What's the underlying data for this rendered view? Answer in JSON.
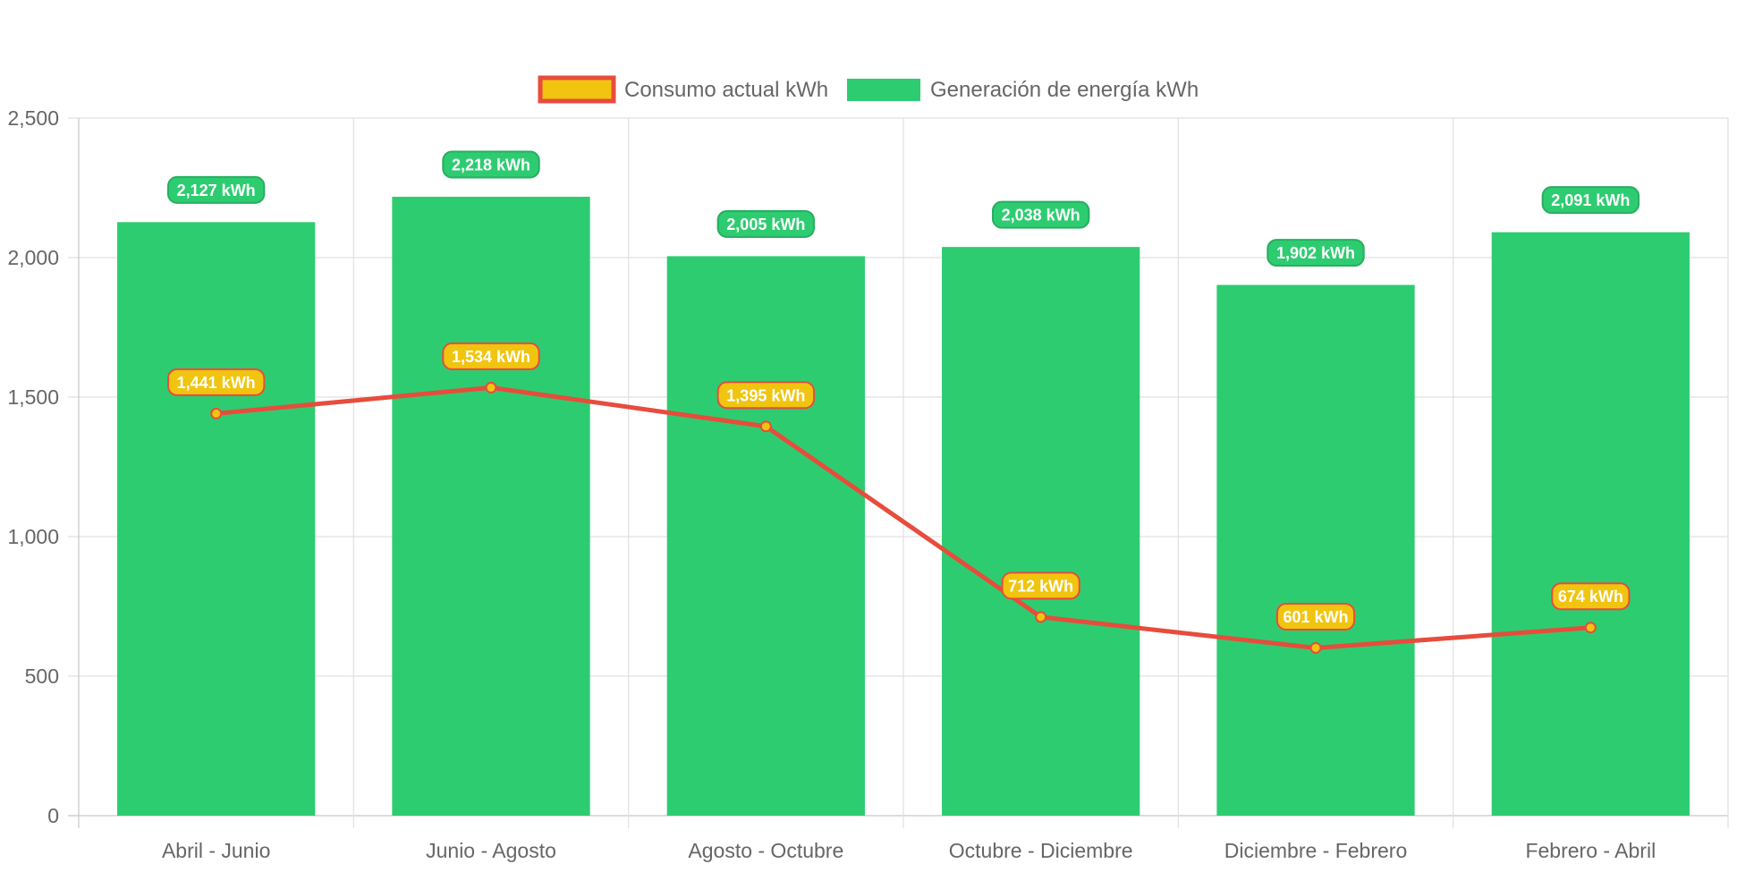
{
  "chart_data": {
    "type": "bar",
    "categories": [
      "Abril - Junio",
      "Junio - Agosto",
      "Agosto - Octubre",
      "Octubre - Diciembre",
      "Diciembre - Febrero",
      "Febrero - Abril"
    ],
    "series": [
      {
        "name": "Consumo actual kWh",
        "type": "line",
        "values": [
          1441,
          1534,
          1395,
          712,
          601,
          674
        ],
        "labels": [
          "1,441 kWh",
          "1,534 kWh",
          "1,395 kWh",
          "712 kWh",
          "601 kWh",
          "674 kWh"
        ],
        "line_color": "#e74c3c",
        "fill_color": "#f1c40f"
      },
      {
        "name": "Generación de energía kWh",
        "type": "bar",
        "values": [
          2127,
          2218,
          2005,
          2038,
          1902,
          2091
        ],
        "labels": [
          "2,127 kWh",
          "2,218 kWh",
          "2,005 kWh",
          "2,038 kWh",
          "1,902 kWh",
          "2,091 kWh"
        ],
        "color": "#2ecc71",
        "border_color": "#27ae60"
      }
    ],
    "y_ticks": [
      "0",
      "500",
      "1,000",
      "1,500",
      "2,000",
      "2,500"
    ],
    "ylim": [
      0,
      2500
    ],
    "grid": true,
    "legend_position": "top",
    "colors": {
      "grid": "#e0e0e0",
      "axis": "#c8c8c8",
      "text": "#666666"
    }
  }
}
